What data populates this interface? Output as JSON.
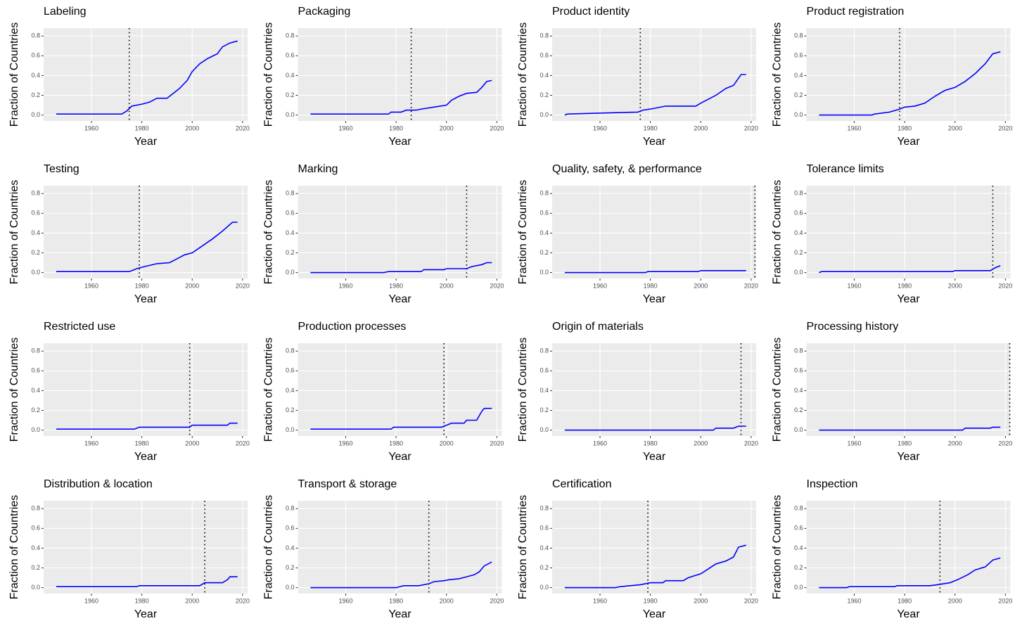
{
  "chart_data": [
    {
      "type": "line",
      "title": "Labeling",
      "xlabel": "Year",
      "ylabel": "Fraction of Countries",
      "color": "#0000ff",
      "vline": 1975,
      "xlim": [
        1941,
        2022
      ],
      "ylim": [
        -0.06,
        0.88
      ],
      "xticks": [
        1960,
        1980,
        2000,
        2020
      ],
      "yticks": [
        {
          "value": 0,
          "label": "0.0"
        },
        0.2,
        0.4,
        0.6,
        0.8
      ],
      "x": [
        1946,
        1972,
        1974,
        1976,
        1980,
        1983,
        1986,
        1990,
        1992,
        1995,
        1998,
        2000,
        2003,
        2006,
        2010,
        2012,
        2015,
        2018
      ],
      "values": [
        0.01,
        0.01,
        0.04,
        0.09,
        0.11,
        0.13,
        0.17,
        0.17,
        0.21,
        0.27,
        0.35,
        0.44,
        0.52,
        0.57,
        0.62,
        0.69,
        0.73,
        0.75
      ]
    },
    {
      "type": "line",
      "title": "Packaging",
      "xlabel": "Year",
      "ylabel": "Fraction of Countries",
      "color": "#0000ff",
      "vline": 1986,
      "xlim": [
        1941,
        2022
      ],
      "ylim": [
        -0.06,
        0.88
      ],
      "xticks": [
        1960,
        1980,
        2000,
        2020
      ],
      "yticks": [
        {
          "value": 0,
          "label": "0.0"
        },
        0.2,
        0.4,
        0.6,
        0.8
      ],
      "x": [
        1946,
        1977,
        1978,
        1982,
        1984,
        1988,
        1990,
        1995,
        2000,
        2002,
        2005,
        2008,
        2012,
        2014,
        2016,
        2018
      ],
      "values": [
        0.01,
        0.01,
        0.03,
        0.03,
        0.05,
        0.05,
        0.06,
        0.08,
        0.1,
        0.15,
        0.19,
        0.22,
        0.23,
        0.28,
        0.34,
        0.35
      ]
    },
    {
      "type": "line",
      "title": "Product identity",
      "xlabel": "Year",
      "ylabel": "Fraction of Countries",
      "color": "#0000ff",
      "vline": 1976,
      "xlim": [
        1941,
        2022
      ],
      "ylim": [
        -0.06,
        0.88
      ],
      "xticks": [
        1960,
        1980,
        2000,
        2020
      ],
      "yticks": [
        {
          "value": 0,
          "label": "0.0"
        },
        0.2,
        0.4,
        0.6,
        0.8
      ],
      "x": [
        1946,
        1947,
        1960,
        1975,
        1977,
        1980,
        1986,
        1998,
        2000,
        2003,
        2006,
        2010,
        2013,
        2016,
        2018
      ],
      "values": [
        0,
        0.01,
        0.02,
        0.03,
        0.05,
        0.06,
        0.09,
        0.09,
        0.12,
        0.16,
        0.2,
        0.27,
        0.3,
        0.41,
        0.41
      ]
    },
    {
      "type": "line",
      "title": "Product registration",
      "xlabel": "Year",
      "ylabel": "Fraction of Countries",
      "color": "#0000ff",
      "vline": 1978,
      "xlim": [
        1941,
        2022
      ],
      "ylim": [
        -0.06,
        0.88
      ],
      "xticks": [
        1960,
        1980,
        2000,
        2020
      ],
      "yticks": [
        {
          "value": 0,
          "label": "0.0"
        },
        0.2,
        0.4,
        0.6,
        0.8
      ],
      "x": [
        1946,
        1967,
        1968,
        1974,
        1978,
        1980,
        1984,
        1988,
        1992,
        1996,
        2000,
        2004,
        2008,
        2012,
        2015,
        2018
      ],
      "values": [
        0,
        0,
        0.01,
        0.03,
        0.06,
        0.08,
        0.09,
        0.12,
        0.19,
        0.25,
        0.28,
        0.34,
        0.42,
        0.52,
        0.62,
        0.64
      ]
    },
    {
      "type": "line",
      "title": "Testing",
      "xlabel": "Year",
      "ylabel": "Fraction of Countries",
      "color": "#0000ff",
      "vline": 1979,
      "xlim": [
        1941,
        2022
      ],
      "ylim": [
        -0.06,
        0.88
      ],
      "xticks": [
        1960,
        1980,
        2000,
        2020
      ],
      "yticks": [
        {
          "value": 0,
          "label": "0.0"
        },
        0.2,
        0.4,
        0.6,
        0.8
      ],
      "x": [
        1946,
        1975,
        1978,
        1981,
        1986,
        1991,
        1994,
        1997,
        2000,
        2004,
        2008,
        2012,
        2016,
        2018
      ],
      "values": [
        0.01,
        0.01,
        0.04,
        0.06,
        0.09,
        0.1,
        0.14,
        0.18,
        0.2,
        0.27,
        0.34,
        0.42,
        0.51,
        0.51
      ]
    },
    {
      "type": "line",
      "title": "Marking",
      "xlabel": "Year",
      "ylabel": "Fraction of Countries",
      "color": "#0000ff",
      "vline": 2008,
      "xlim": [
        1941,
        2022
      ],
      "ylim": [
        -0.06,
        0.88
      ],
      "xticks": [
        1960,
        1980,
        2000,
        2020
      ],
      "yticks": [
        {
          "value": 0,
          "label": "0.0"
        },
        0.2,
        0.4,
        0.6,
        0.8
      ],
      "x": [
        1946,
        1975,
        1977,
        1990,
        1991,
        1999,
        2000,
        2008,
        2010,
        2014,
        2016,
        2018
      ],
      "values": [
        0,
        0,
        0.01,
        0.01,
        0.03,
        0.03,
        0.04,
        0.04,
        0.06,
        0.08,
        0.1,
        0.1
      ]
    },
    {
      "type": "line",
      "title": "Quality, safety, & performance",
      "xlabel": "Year",
      "ylabel": "Fraction of Countries",
      "color": "#0000ff",
      "vline": 2021.5,
      "xlim": [
        1941,
        2022
      ],
      "ylim": [
        -0.06,
        0.88
      ],
      "xticks": [
        1960,
        1980,
        2000,
        2020
      ],
      "yticks": [
        {
          "value": 0,
          "label": "0.0"
        },
        0.2,
        0.4,
        0.6,
        0.8
      ],
      "x": [
        1946,
        1978,
        1979,
        1999,
        2000,
        2018
      ],
      "values": [
        0,
        0,
        0.01,
        0.01,
        0.02,
        0.02
      ]
    },
    {
      "type": "line",
      "title": "Tolerance limits",
      "xlabel": "Year",
      "ylabel": "Fraction of Countries",
      "color": "#0000ff",
      "vline": 2015,
      "xlim": [
        1941,
        2022
      ],
      "ylim": [
        -0.06,
        0.88
      ],
      "xticks": [
        1960,
        1980,
        2000,
        2020
      ],
      "yticks": [
        {
          "value": 0,
          "label": "0.0"
        },
        0.2,
        0.4,
        0.6,
        0.8
      ],
      "x": [
        1946,
        1947,
        1999,
        2000,
        2014,
        2016,
        2018
      ],
      "values": [
        0,
        0.01,
        0.01,
        0.02,
        0.02,
        0.05,
        0.07
      ]
    },
    {
      "type": "line",
      "title": "Restricted use",
      "xlabel": "Year",
      "ylabel": "Fraction of Countries",
      "color": "#0000ff",
      "vline": 1999,
      "xlim": [
        1941,
        2022
      ],
      "ylim": [
        -0.06,
        0.88
      ],
      "xticks": [
        1960,
        1980,
        2000,
        2020
      ],
      "yticks": [
        {
          "value": 0,
          "label": "0.0"
        },
        0.2,
        0.4,
        0.6,
        0.8
      ],
      "x": [
        1946,
        1977,
        1979,
        1999,
        2000,
        2014,
        2015,
        2018
      ],
      "values": [
        0.01,
        0.01,
        0.03,
        0.03,
        0.05,
        0.05,
        0.07,
        0.07
      ]
    },
    {
      "type": "line",
      "title": "Production processes",
      "xlabel": "Year",
      "ylabel": "Fraction of Countries",
      "color": "#0000ff",
      "vline": 1999,
      "xlim": [
        1941,
        2022
      ],
      "ylim": [
        -0.06,
        0.88
      ],
      "xticks": [
        1960,
        1980,
        2000,
        2020
      ],
      "yticks": [
        {
          "value": 0,
          "label": "0.0"
        },
        0.2,
        0.4,
        0.6,
        0.8
      ],
      "x": [
        1946,
        1978,
        1979,
        1998,
        2000,
        2002,
        2007,
        2008,
        2012,
        2014,
        2015,
        2018
      ],
      "values": [
        0.01,
        0.01,
        0.03,
        0.03,
        0.05,
        0.07,
        0.07,
        0.1,
        0.1,
        0.19,
        0.22,
        0.22
      ]
    },
    {
      "type": "line",
      "title": "Origin of materials",
      "xlabel": "Year",
      "ylabel": "Fraction of Countries",
      "color": "#0000ff",
      "vline": 2016,
      "xlim": [
        1941,
        2022
      ],
      "ylim": [
        -0.06,
        0.88
      ],
      "xticks": [
        1960,
        1980,
        2000,
        2020
      ],
      "yticks": [
        {
          "value": 0,
          "label": "0.0"
        },
        0.2,
        0.4,
        0.6,
        0.8
      ],
      "x": [
        1946,
        2005,
        2006,
        2013,
        2015,
        2018
      ],
      "values": [
        0,
        0,
        0.02,
        0.02,
        0.04,
        0.04
      ]
    },
    {
      "type": "line",
      "title": "Processing history",
      "xlabel": "Year",
      "ylabel": "Fraction of Countries",
      "color": "#0000ff",
      "vline": 2021.7,
      "xlim": [
        1941,
        2022
      ],
      "ylim": [
        -0.06,
        0.88
      ],
      "xticks": [
        1960,
        1980,
        2000,
        2020
      ],
      "yticks": [
        {
          "value": 0,
          "label": "0.0"
        },
        0.2,
        0.4,
        0.6,
        0.8
      ],
      "x": [
        1946,
        2003,
        2004,
        2014,
        2015,
        2018
      ],
      "values": [
        0,
        0,
        0.02,
        0.02,
        0.03,
        0.03
      ]
    },
    {
      "type": "line",
      "title": "Distribution & location",
      "xlabel": "Year",
      "ylabel": "Fraction of Countries",
      "color": "#0000ff",
      "vline": 2005,
      "xlim": [
        1941,
        2022
      ],
      "ylim": [
        -0.06,
        0.88
      ],
      "xticks": [
        1960,
        1980,
        2000,
        2020
      ],
      "yticks": [
        {
          "value": 0,
          "label": "0.0"
        },
        0.2,
        0.4,
        0.6,
        0.8
      ],
      "x": [
        1946,
        1978,
        1979,
        2003,
        2005,
        2012,
        2014,
        2015,
        2018
      ],
      "values": [
        0.01,
        0.01,
        0.02,
        0.02,
        0.05,
        0.05,
        0.08,
        0.11,
        0.11
      ]
    },
    {
      "type": "line",
      "title": "Transport & storage",
      "xlabel": "Year",
      "ylabel": "Fraction of Countries",
      "color": "#0000ff",
      "vline": 1993,
      "xlim": [
        1941,
        2022
      ],
      "ylim": [
        -0.06,
        0.88
      ],
      "xticks": [
        1960,
        1980,
        2000,
        2020
      ],
      "yticks": [
        {
          "value": 0,
          "label": "0.0"
        },
        0.2,
        0.4,
        0.6,
        0.8
      ],
      "x": [
        1946,
        1980,
        1983,
        1989,
        1993,
        1995,
        1999,
        2001,
        2005,
        2008,
        2011,
        2013,
        2015,
        2018
      ],
      "values": [
        0,
        0,
        0.02,
        0.02,
        0.04,
        0.06,
        0.07,
        0.08,
        0.09,
        0.11,
        0.13,
        0.16,
        0.22,
        0.26
      ]
    },
    {
      "type": "line",
      "title": "Certification",
      "xlabel": "Year",
      "ylabel": "Fraction of Countries",
      "color": "#0000ff",
      "vline": 1979,
      "xlim": [
        1941,
        2022
      ],
      "ylim": [
        -0.06,
        0.88
      ],
      "xticks": [
        1960,
        1980,
        2000,
        2020
      ],
      "yticks": [
        {
          "value": 0,
          "label": "0.0"
        },
        0.2,
        0.4,
        0.6,
        0.8
      ],
      "x": [
        1946,
        1966,
        1968,
        1972,
        1976,
        1980,
        1985,
        1986,
        1993,
        1995,
        2000,
        2003,
        2006,
        2010,
        2013,
        2015,
        2018
      ],
      "values": [
        0,
        0,
        0.01,
        0.02,
        0.03,
        0.05,
        0.05,
        0.07,
        0.07,
        0.1,
        0.14,
        0.19,
        0.24,
        0.27,
        0.31,
        0.41,
        0.43
      ]
    },
    {
      "type": "line",
      "title": "Inspection",
      "xlabel": "Year",
      "ylabel": "Fraction of Countries",
      "color": "#0000ff",
      "vline": 1994,
      "xlim": [
        1941,
        2022
      ],
      "ylim": [
        -0.06,
        0.88
      ],
      "xticks": [
        1960,
        1980,
        2000,
        2020
      ],
      "yticks": [
        {
          "value": 0,
          "label": "0.0"
        },
        0.2,
        0.4,
        0.6,
        0.8
      ],
      "x": [
        1946,
        1957,
        1958,
        1976,
        1977,
        1990,
        1993,
        1998,
        2001,
        2005,
        2008,
        2012,
        2015,
        2018
      ],
      "values": [
        0,
        0,
        0.01,
        0.01,
        0.02,
        0.02,
        0.03,
        0.05,
        0.08,
        0.13,
        0.18,
        0.21,
        0.28,
        0.3
      ]
    }
  ]
}
